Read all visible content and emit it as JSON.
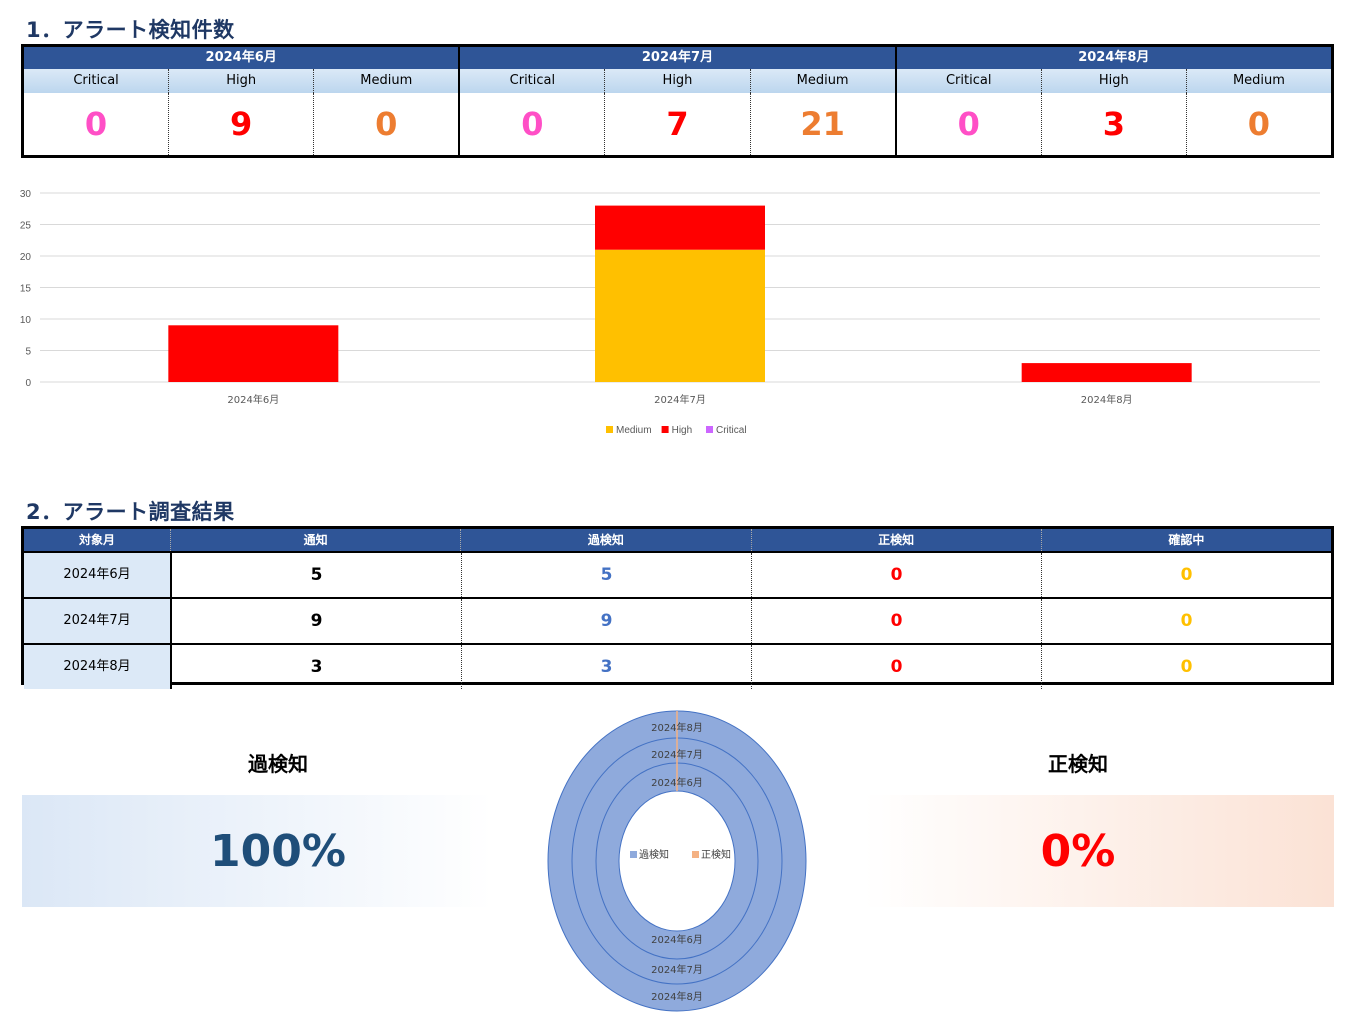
{
  "section1": {
    "title": "1．アラート検知件数"
  },
  "summary_table": {
    "months": [
      "2024年6月",
      "2024年7月",
      "2024年8月"
    ],
    "severities": [
      "Critical",
      "High",
      "Medium",
      "Critical",
      "High",
      "Medium",
      "Critical",
      "High",
      "Medium"
    ],
    "values": [
      "0",
      "9",
      "0",
      "0",
      "7",
      "21",
      "0",
      "3",
      "0"
    ]
  },
  "chart_data": {
    "type": "bar",
    "stacked": true,
    "categories": [
      "2024年6月",
      "2024年7月",
      "2024年8月"
    ],
    "series": [
      {
        "name": "Medium",
        "values": [
          0,
          21,
          0
        ],
        "color": "#ffc000"
      },
      {
        "name": "High",
        "values": [
          9,
          7,
          3
        ],
        "color": "#ff0000"
      },
      {
        "name": "Critical",
        "values": [
          0,
          0,
          0
        ],
        "color": "#cc66ff"
      }
    ],
    "ylim": [
      0,
      30
    ],
    "yticks": [
      "0",
      "5",
      "10",
      "15",
      "20",
      "25",
      "30"
    ],
    "legend": "bottom",
    "grid": true
  },
  "section2": {
    "title": "2．アラート調査結果"
  },
  "results_table": {
    "headers": [
      "対象月",
      "通知",
      "過検知",
      "正検知",
      "確認中"
    ],
    "rows": [
      [
        "2024年6月",
        "5",
        "5",
        "0",
        "0"
      ],
      [
        "2024年7月",
        "9",
        "9",
        "0",
        "0"
      ],
      [
        "2024年8月",
        "3",
        "3",
        "0",
        "0"
      ]
    ]
  },
  "kpi": {
    "false_label": "過検知",
    "false_value": "100%",
    "true_label": "正検知",
    "true_value": "0%"
  },
  "donut_data": {
    "type": "donut",
    "rings": [
      "2024年6月",
      "2024年7月",
      "2024年8月"
    ],
    "legend": [
      "過検知",
      "正検知"
    ],
    "values": {
      "過検知": [
        5,
        9,
        3
      ],
      "正検知": [
        0,
        0,
        0
      ]
    },
    "colors": {
      "過検知": "#8faadc",
      "正検知": "#f4b183"
    }
  }
}
